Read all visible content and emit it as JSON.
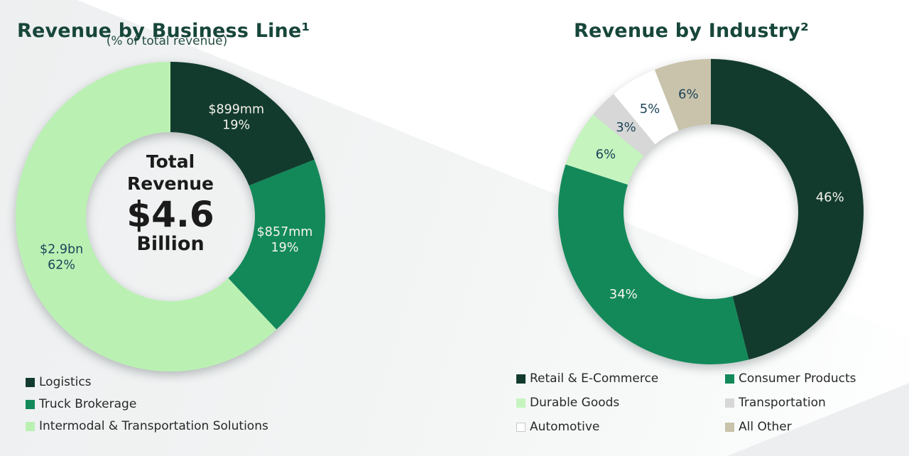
{
  "left_chart": {
    "title": "Revenue by Business Line¹",
    "subtitle": "(% of total revenue)",
    "center_label": {
      "top": "Total Revenue",
      "value": "$4.6",
      "bottom": "Billion"
    }
  },
  "right_chart": {
    "title": "Revenue by Industry²"
  },
  "colors": {
    "dark_green": "#123B2E",
    "medium_green": "#13895A",
    "light_green": "#BAF1B3",
    "pale_green": "#C5F4BF",
    "gray": "#D7D7D7",
    "white": "#FFFFFF",
    "tan": "#C9C3AB",
    "title_text": "#17463A",
    "dark_label_text": "#1E4559",
    "light_label_text": "#F7F5EC"
  },
  "chart_data": [
    {
      "type": "donut",
      "title": "Revenue by Business Line¹",
      "subtitle": "(% of total revenue)",
      "center_label": "Total Revenue $4.6 Billion",
      "legend_position": "bottom-left",
      "legend_columns": 1,
      "segments": [
        {
          "label": "Logistics",
          "value": 19,
          "value_label": "$899mm",
          "pct_label": "19%",
          "color": "#123B2E",
          "label_color": "#F7F5EC"
        },
        {
          "label": "Truck Brokerage",
          "value": 19,
          "value_label": "$857mm",
          "pct_label": "19%",
          "color": "#13895A",
          "label_color": "#F7F5EC"
        },
        {
          "label": "Intermodal & Transportation Solutions",
          "value": 62,
          "value_label": "$2.9bn",
          "pct_label": "62%",
          "color": "#BAF1B3",
          "label_color": "#1E4559"
        }
      ]
    },
    {
      "type": "donut",
      "title": "Revenue by Industry²",
      "legend_position": "bottom-right",
      "legend_columns": 2,
      "segments": [
        {
          "label": "Retail & E-Commerce",
          "value": 46,
          "pct_label": "46%",
          "color": "#123B2E",
          "label_color": "#F7F5EC"
        },
        {
          "label": "Consumer Products",
          "value": 34,
          "pct_label": "34%",
          "color": "#13895A",
          "label_color": "#F7F5EC"
        },
        {
          "label": "Durable Goods",
          "value": 6,
          "pct_label": "6%",
          "color": "#C5F4BF",
          "label_color": "#1E4559"
        },
        {
          "label": "Transportation",
          "value": 3,
          "pct_label": "3%",
          "color": "#D7D7D7",
          "label_color": "#1E4559"
        },
        {
          "label": "Automotive",
          "value": 5,
          "pct_label": "5%",
          "color": "#FFFFFF",
          "label_color": "#1E4559",
          "swatch_border": "#C9C9C9"
        },
        {
          "label": "All Other",
          "value": 6,
          "pct_label": "6%",
          "color": "#C9C3AB",
          "label_color": "#1E4559"
        }
      ]
    }
  ]
}
